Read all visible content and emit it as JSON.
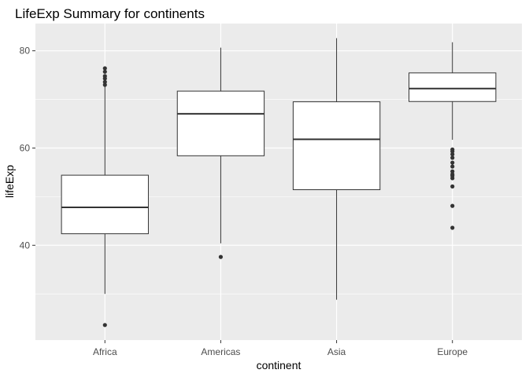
{
  "chart_data": {
    "type": "boxplot",
    "title": "LifeExp Summary for continents",
    "xlabel": "continent",
    "ylabel": "lifeExp",
    "ylim": [
      20.5,
      85.6
    ],
    "yticks": [
      40,
      60,
      80
    ],
    "grid": true,
    "categories": [
      "Africa",
      "Americas",
      "Asia",
      "Europe"
    ],
    "boxes": [
      {
        "category": "Africa",
        "whisker_low": 30.0,
        "q1": 42.37,
        "median": 47.79,
        "q3": 54.41,
        "whisker_high": 72.8,
        "outliers": [
          23.6,
          73.0,
          73.6,
          74.3,
          74.8,
          75.7,
          76.4
        ]
      },
      {
        "category": "Americas",
        "whisker_low": 40.4,
        "q1": 58.41,
        "median": 67.05,
        "q3": 71.7,
        "whisker_high": 80.65,
        "outliers": [
          37.6
        ]
      },
      {
        "category": "Asia",
        "whisker_low": 28.8,
        "q1": 51.43,
        "median": 61.79,
        "q3": 69.51,
        "whisker_high": 82.6,
        "outliers": []
      },
      {
        "category": "Europe",
        "whisker_low": 61.7,
        "q1": 69.57,
        "median": 72.24,
        "q3": 75.45,
        "whisker_high": 81.76,
        "outliers": [
          43.6,
          48.1,
          52.1,
          53.8,
          54.3,
          54.6,
          55.2,
          56.2,
          57.0,
          58.0,
          58.7,
          59.3,
          59.7
        ]
      }
    ]
  }
}
